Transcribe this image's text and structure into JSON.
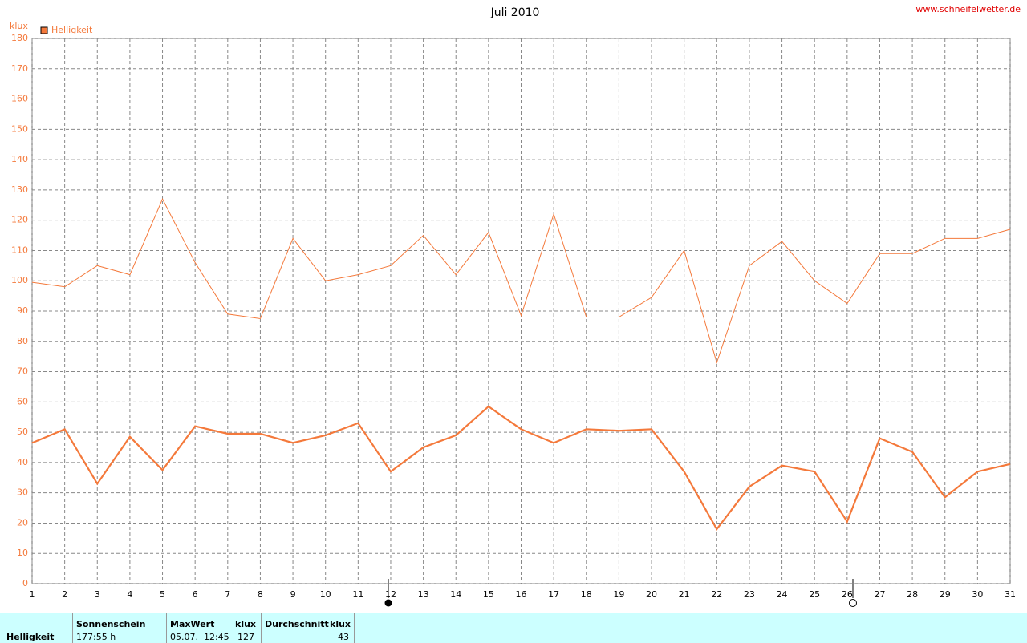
{
  "chart_data": {
    "type": "line",
    "title": "Juli 2010",
    "site": "www.schneifelwetter.de",
    "y_unit": "klux",
    "x": [
      1,
      2,
      3,
      4,
      5,
      6,
      7,
      8,
      9,
      10,
      11,
      12,
      13,
      14,
      15,
      16,
      17,
      18,
      19,
      20,
      21,
      22,
      23,
      24,
      25,
      26,
      27,
      28,
      29,
      30,
      31
    ],
    "xlim": [
      1,
      31
    ],
    "xticks": [
      1,
      2,
      3,
      4,
      5,
      6,
      7,
      8,
      9,
      10,
      11,
      12,
      13,
      14,
      15,
      16,
      17,
      18,
      19,
      20,
      21,
      22,
      23,
      24,
      25,
      26,
      27,
      28,
      29,
      30,
      31
    ],
    "ylim": [
      0,
      180
    ],
    "yticks": [
      0,
      10,
      20,
      30,
      40,
      50,
      60,
      70,
      80,
      90,
      100,
      110,
      120,
      130,
      140,
      150,
      160,
      170,
      180
    ],
    "grid": true,
    "series": [
      {
        "name": "Helligkeit",
        "color": "#f4793b",
        "values": [
          46.5,
          51,
          33,
          48.5,
          37.5,
          52,
          49.5,
          49.5,
          46.5,
          49,
          53,
          37,
          45,
          49,
          58.5,
          51,
          46.5,
          51,
          50.5,
          51,
          37,
          18,
          32,
          39,
          37,
          20.5,
          48,
          43.5,
          28.5,
          37,
          39.5
        ]
      },
      {
        "color": "#f4793b",
        "values": [
          99.5,
          98,
          105,
          102,
          127,
          106,
          89,
          87.5,
          114,
          100,
          102,
          105,
          115,
          102,
          116,
          88.5,
          122,
          88,
          88,
          94.5,
          110,
          73,
          105,
          113,
          100,
          92.5,
          109,
          109,
          114,
          114,
          117
        ]
      }
    ]
  },
  "footer": {
    "row_label": "Helligkeit",
    "sun_header": "Sonnenschein",
    "sun_value": "177:55 h",
    "max_header": "MaxWert",
    "max_unit": "klux",
    "max_time": "05.07.  12:45",
    "max_value": "127",
    "avg_header": "Durchschnitt",
    "avg_unit": "klux",
    "avg_value": "43"
  }
}
